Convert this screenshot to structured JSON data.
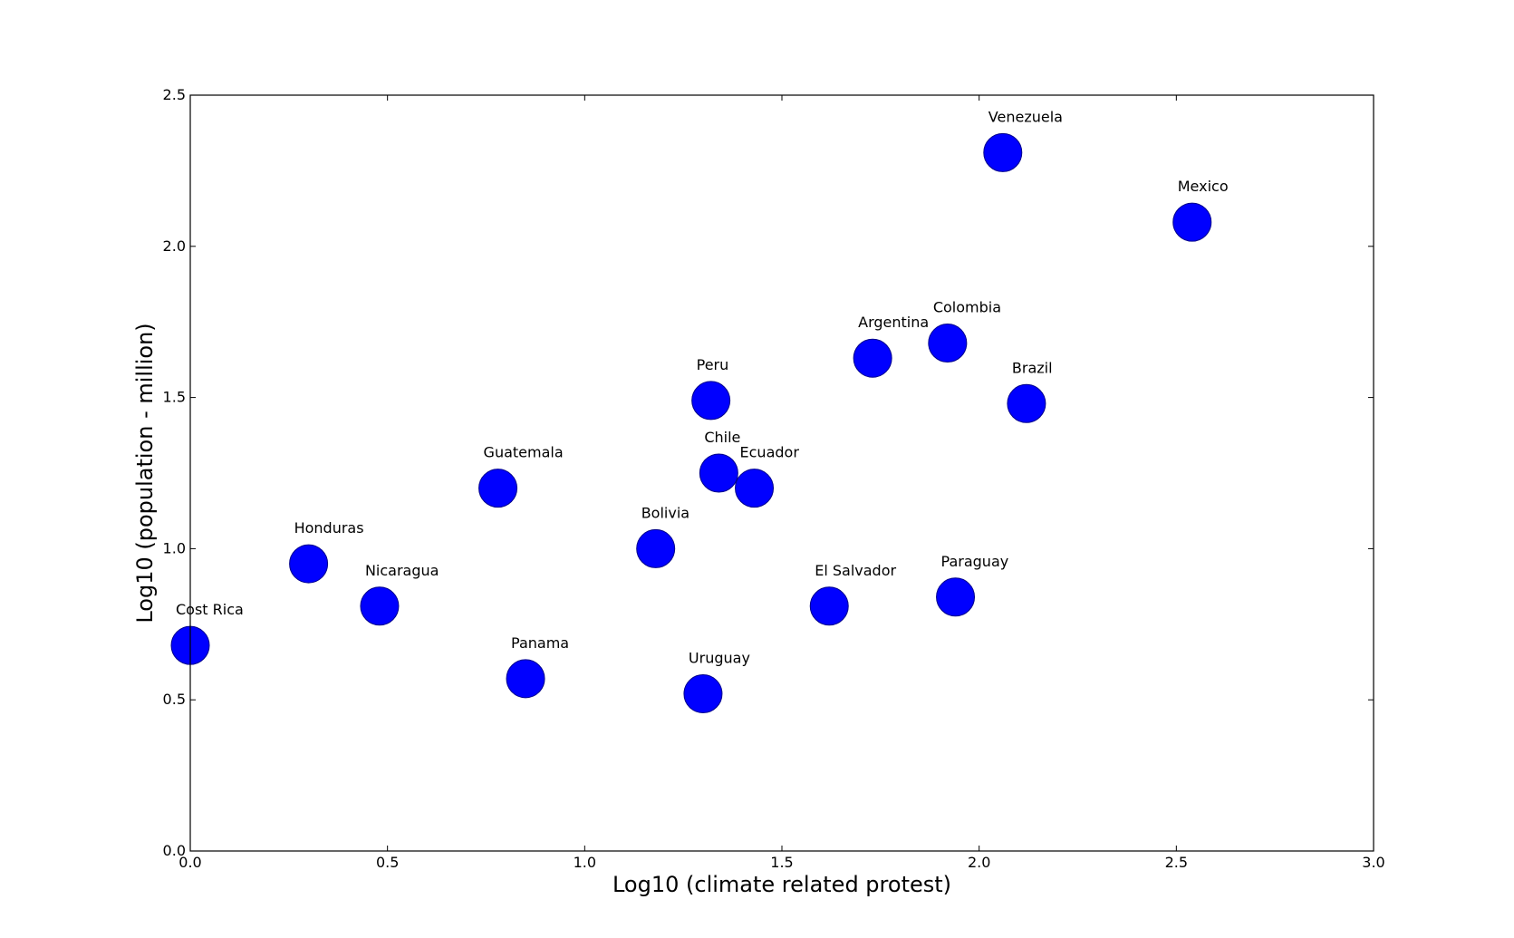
{
  "chart_data": {
    "type": "scatter",
    "title": "",
    "xlabel": "Log10 (climate related protest)",
    "ylabel": "Log10 (population - million)",
    "xlim": [
      0,
      3
    ],
    "ylim": [
      0,
      2.5
    ],
    "xticks": [
      "0.0",
      "0.5",
      "1.0",
      "1.5",
      "2.0",
      "2.5",
      "3.0"
    ],
    "yticks": [
      "0.0",
      "0.5",
      "1.0",
      "1.5",
      "2.0",
      "2.5"
    ],
    "grid": false,
    "marker_color": "#0000ff",
    "points": [
      {
        "label": "Cost Rica",
        "x": 0.0,
        "y": 0.68
      },
      {
        "label": "Honduras",
        "x": 0.3,
        "y": 0.95
      },
      {
        "label": "Nicaragua",
        "x": 0.48,
        "y": 0.81
      },
      {
        "label": "Guatemala",
        "x": 0.78,
        "y": 1.2
      },
      {
        "label": "Panama",
        "x": 0.85,
        "y": 0.57
      },
      {
        "label": "Bolivia",
        "x": 1.18,
        "y": 1.0
      },
      {
        "label": "Uruguay",
        "x": 1.3,
        "y": 0.52
      },
      {
        "label": "Peru",
        "x": 1.32,
        "y": 1.49
      },
      {
        "label": "Chile",
        "x": 1.34,
        "y": 1.25
      },
      {
        "label": "Ecuador",
        "x": 1.43,
        "y": 1.2
      },
      {
        "label": "El Salvador",
        "x": 1.62,
        "y": 0.81
      },
      {
        "label": "Argentina",
        "x": 1.73,
        "y": 1.63
      },
      {
        "label": "Colombia",
        "x": 1.92,
        "y": 1.68
      },
      {
        "label": "Paraguay",
        "x": 1.94,
        "y": 0.84
      },
      {
        "label": "Venezuela",
        "x": 2.06,
        "y": 2.31
      },
      {
        "label": "Brazil",
        "x": 2.12,
        "y": 1.48
      },
      {
        "label": "Mexico",
        "x": 2.54,
        "y": 2.08
      }
    ]
  }
}
